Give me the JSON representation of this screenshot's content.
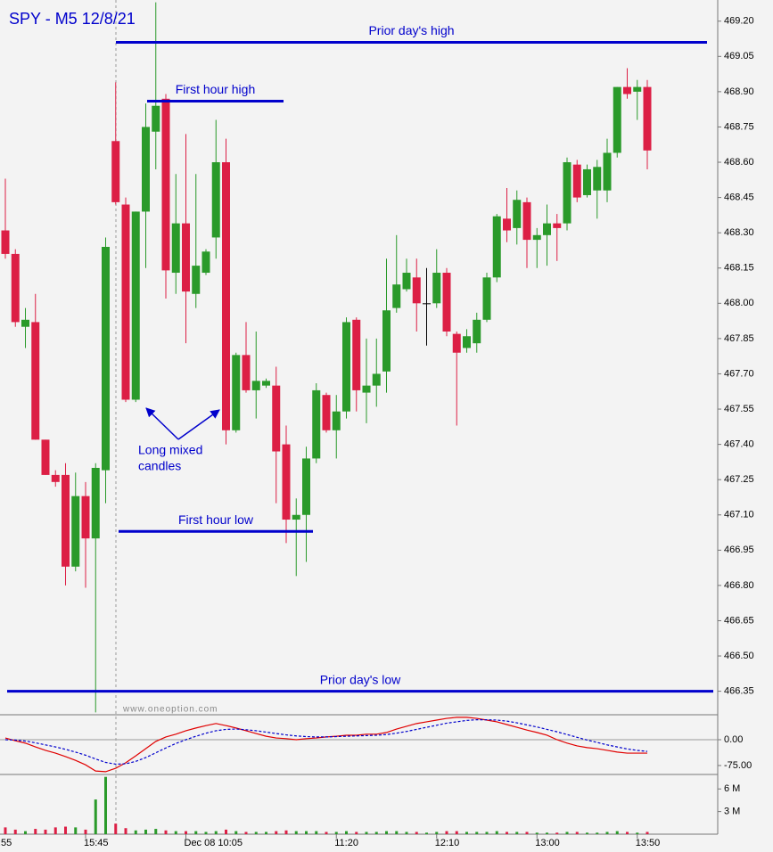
{
  "chart_data": [
    {
      "type": "candlestick",
      "title": "SPY - M5  12/8/21",
      "watermark": "www.oneoption.com",
      "x_label_clipped": ":55",
      "categories": [
        null,
        null,
        null,
        null,
        null,
        null,
        null,
        null,
        "15:45",
        null,
        null,
        null,
        null,
        null,
        null,
        null,
        null,
        null,
        "Dec 08 10:05",
        null,
        null,
        null,
        null,
        null,
        null,
        null,
        null,
        null,
        null,
        null,
        null,
        null,
        null,
        "11:20",
        null,
        null,
        null,
        null,
        null,
        null,
        null,
        null,
        null,
        "12:10",
        null,
        null,
        null,
        null,
        null,
        null,
        null,
        null,
        null,
        "13:00",
        null,
        null,
        null,
        null,
        null,
        null,
        null,
        null,
        null,
        "13:50",
        null
      ],
      "open": [
        468.31,
        468.21,
        467.9,
        467.92,
        467.42,
        467.27,
        467.27,
        466.88,
        467.18,
        467.0,
        467.29,
        468.69,
        468.42,
        467.59,
        468.39,
        468.73,
        468.87,
        468.13,
        468.34,
        468.04,
        468.13,
        468.28,
        468.6,
        467.46,
        467.78,
        467.63,
        467.65,
        467.65,
        467.4,
        467.08,
        467.1,
        467.34,
        467.61,
        467.46,
        467.54,
        467.93,
        467.62,
        467.65,
        467.71,
        467.98,
        468.06,
        468.11,
        468.0,
        468.0,
        468.13,
        467.87,
        467.81,
        467.83,
        467.93,
        468.11,
        468.36,
        468.32,
        468.43,
        468.27,
        468.29,
        468.34,
        468.34,
        468.59,
        468.46,
        468.48,
        468.48,
        468.64,
        468.92,
        468.9,
        468.92
      ],
      "high": [
        468.53,
        468.23,
        467.98,
        468.04,
        467.42,
        467.29,
        467.32,
        467.28,
        467.24,
        467.32,
        468.28,
        468.94,
        468.45,
        468.39,
        468.85,
        469.28,
        468.89,
        468.55,
        468.72,
        468.55,
        468.23,
        468.78,
        468.7,
        467.79,
        467.92,
        467.88,
        467.68,
        467.73,
        467.48,
        467.17,
        467.39,
        467.66,
        467.62,
        467.61,
        467.94,
        467.94,
        467.85,
        467.85,
        468.19,
        468.29,
        468.19,
        468.19,
        468.15,
        468.23,
        468.15,
        467.88,
        467.89,
        467.96,
        468.13,
        468.38,
        468.49,
        468.48,
        468.45,
        468.32,
        468.42,
        468.38,
        468.62,
        468.61,
        468.59,
        468.61,
        468.7,
        468.92,
        469.0,
        468.95,
        468.95
      ],
      "low": [
        468.19,
        467.9,
        467.81,
        467.42,
        467.27,
        467.22,
        466.8,
        466.86,
        466.79,
        466.26,
        467.15,
        468.42,
        467.58,
        467.58,
        468.15,
        468.57,
        468.02,
        468.04,
        467.83,
        467.98,
        468.12,
        468.19,
        467.4,
        467.45,
        467.62,
        467.51,
        467.64,
        467.15,
        466.98,
        466.84,
        466.9,
        467.32,
        467.45,
        467.34,
        467.51,
        467.54,
        467.49,
        467.56,
        467.62,
        467.96,
        468.05,
        467.88,
        467.82,
        467.98,
        467.86,
        467.48,
        467.79,
        467.79,
        467.92,
        468.09,
        468.26,
        468.25,
        468.15,
        468.15,
        468.16,
        468.18,
        468.31,
        468.43,
        468.45,
        468.36,
        468.43,
        468.62,
        468.87,
        468.78,
        468.57
      ],
      "close": [
        468.21,
        467.92,
        467.93,
        467.42,
        467.27,
        467.24,
        466.88,
        467.18,
        467.0,
        467.3,
        468.24,
        468.43,
        467.59,
        468.39,
        468.75,
        468.84,
        468.14,
        468.34,
        468.05,
        468.16,
        468.22,
        468.6,
        467.46,
        467.78,
        467.63,
        467.67,
        467.67,
        467.37,
        467.08,
        467.1,
        467.34,
        467.63,
        467.46,
        467.54,
        467.92,
        467.63,
        467.65,
        467.7,
        467.97,
        468.08,
        468.13,
        468.0,
        468.0,
        468.13,
        467.88,
        467.79,
        467.86,
        467.93,
        468.11,
        468.37,
        468.31,
        468.44,
        468.27,
        468.29,
        468.34,
        468.32,
        468.6,
        468.45,
        468.57,
        468.58,
        468.64,
        468.92,
        468.89,
        468.92,
        468.65
      ],
      "up_color": "#2a9a2a",
      "down_color": "#dc1f45",
      "doji_color": "#000000",
      "ylim": [
        466.25,
        469.29
      ],
      "yticks": [
        {
          "value": 466.35,
          "label": "466.35"
        },
        {
          "value": 466.5,
          "label": "466.50"
        },
        {
          "value": 466.65,
          "label": "466.65"
        },
        {
          "value": 466.8,
          "label": "466.80"
        },
        {
          "value": 466.95,
          "label": "466.95"
        },
        {
          "value": 467.1,
          "label": "467.10"
        },
        {
          "value": 467.25,
          "label": "467.25"
        },
        {
          "value": 467.4,
          "label": "467.40"
        },
        {
          "value": 467.55,
          "label": "467.55"
        },
        {
          "value": 467.7,
          "label": "467.70"
        },
        {
          "value": 467.85,
          "label": "467.85"
        },
        {
          "value": 468,
          "label": "468.00"
        },
        {
          "value": 468.15,
          "label": "468.15"
        },
        {
          "value": 468.3,
          "label": "468.30"
        },
        {
          "value": 468.45,
          "label": "468.45"
        },
        {
          "value": 468.6,
          "label": "468.60"
        },
        {
          "value": 468.75,
          "label": "468.75"
        },
        {
          "value": 468.9,
          "label": "468.90"
        },
        {
          "value": 469.05,
          "label": "469.05"
        },
        {
          "value": 469.2,
          "label": "469.20"
        }
      ],
      "levels": [
        {
          "label": "Prior day's high",
          "value": 469.11
        },
        {
          "label": "First hour high",
          "value": 468.86
        },
        {
          "label": "First hour low",
          "value": 467.03
        },
        {
          "label": "Prior day's low",
          "value": 466.35
        }
      ],
      "level_color": "#0000cc",
      "annotation": [
        "Long mixed",
        "candles"
      ]
    },
    {
      "type": "line",
      "ylim": [
        -101,
        72.5
      ],
      "yticks": [
        {
          "value": 0,
          "label": "0.00"
        },
        {
          "value": -75,
          "label": "-75.00"
        }
      ],
      "series": [
        {
          "color": "#e00000",
          "dashed": false,
          "values": [
            5,
            -3,
            -10,
            -21,
            -31,
            -39,
            -49,
            -60,
            -73,
            -91,
            -93,
            -83,
            -67,
            -47,
            -26,
            -5,
            8,
            16,
            26,
            34,
            41,
            47,
            41,
            34,
            26,
            18,
            10,
            5,
            3,
            0,
            3,
            5,
            8,
            10,
            13,
            13,
            16,
            16,
            21,
            31,
            39,
            47,
            52,
            57,
            62,
            65,
            65,
            62,
            57,
            52,
            44,
            36,
            28,
            21,
            13,
            0,
            -10,
            -18,
            -23,
            -26,
            -31,
            -36,
            -39,
            -39,
            -39
          ]
        },
        {
          "color": "#0000cc",
          "dashed": true,
          "values": [
            0,
            -1,
            -4,
            -9,
            -15,
            -21,
            -28,
            -36,
            -45,
            -56,
            -66,
            -71,
            -70,
            -63,
            -52,
            -38,
            -24,
            -11,
            0,
            10,
            19,
            26,
            30,
            31,
            29,
            26,
            22,
            18,
            14,
            11,
            9,
            8,
            8,
            9,
            10,
            11,
            12,
            13,
            15,
            19,
            24,
            30,
            36,
            42,
            48,
            52,
            56,
            58,
            58,
            57,
            54,
            49,
            43,
            37,
            30,
            23,
            15,
            7,
            -1,
            -8,
            -15,
            -21,
            -27,
            -31,
            -34
          ]
        }
      ]
    },
    {
      "type": "bar",
      "ylim": [
        0,
        7.8
      ],
      "yticks": [
        {
          "value": 3,
          "label": "3 M"
        },
        {
          "value": 6,
          "label": "6 M"
        }
      ],
      "values": [
        0.9,
        0.6,
        0.4,
        0.7,
        0.6,
        0.9,
        1.0,
        0.9,
        0.6,
        4.6,
        7.6,
        1.4,
        0.8,
        0.5,
        0.6,
        0.7,
        0.5,
        0.4,
        0.4,
        0.4,
        0.3,
        0.4,
        0.6,
        0.4,
        0.3,
        0.3,
        0.3,
        0.4,
        0.5,
        0.4,
        0.4,
        0.4,
        0.3,
        0.3,
        0.4,
        0.3,
        0.3,
        0.3,
        0.4,
        0.4,
        0.3,
        0.3,
        0.2,
        0.3,
        0.4,
        0.4,
        0.3,
        0.3,
        0.3,
        0.4,
        0.3,
        0.3,
        0.3,
        0.2,
        0.2,
        0.2,
        0.3,
        0.3,
        0.2,
        0.2,
        0.3,
        0.4,
        0.3,
        0.2,
        0.3
      ]
    }
  ]
}
